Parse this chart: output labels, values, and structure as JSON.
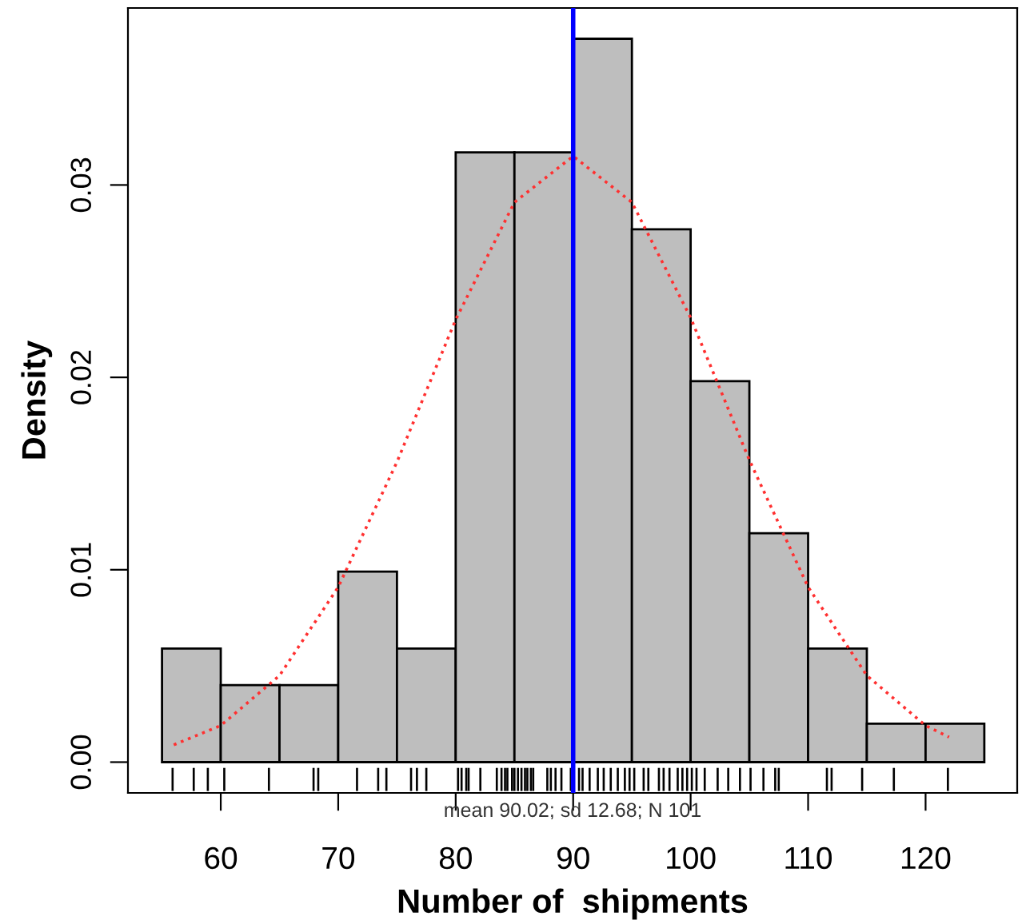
{
  "chart_data": {
    "type": "histogram",
    "xlabel": "Number of  shipments",
    "ylabel": "Density",
    "bins": [
      55,
      60,
      65,
      70,
      75,
      80,
      85,
      90,
      95,
      100,
      105,
      110,
      115,
      120,
      125
    ],
    "values": [
      0.0059,
      0.004,
      0.004,
      0.0099,
      0.0059,
      0.0317,
      0.0317,
      0.0376,
      0.0277,
      0.0198,
      0.0119,
      0.0059,
      0.002,
      0.002
    ],
    "color": "#bebebe",
    "series": [
      {
        "type": "line",
        "color": "#ff3030",
        "line_style": "dotted",
        "x": [
          56,
          60,
          65,
          70,
          75,
          80,
          85,
          90,
          95,
          100,
          105,
          110,
          115,
          120,
          122
        ],
        "values": [
          0.0009,
          0.0019,
          0.0045,
          0.0091,
          0.0156,
          0.023,
          0.0291,
          0.0315,
          0.0291,
          0.0231,
          0.0157,
          0.0091,
          0.0045,
          0.0019,
          0.0013
        ]
      },
      {
        "type": "bar",
        "color": "#000000",
        "x": [
          55.9,
          57.7,
          58.9,
          60.3,
          64.1,
          67.9,
          68.3,
          71.6,
          73.4,
          74.1,
          76.2,
          76.7,
          77.5,
          80.2,
          80.5,
          80.9,
          81.1,
          82.1,
          83.5,
          83.9,
          84.2,
          84.4,
          84.8,
          85.0,
          85.3,
          85.6,
          85.9,
          86.1,
          86.4,
          86.6,
          87.8,
          88.1,
          88.5,
          89.0,
          89.8,
          90.5,
          90.8,
          91.4,
          92.1,
          92.6,
          93.2,
          93.8,
          94.4,
          94.8,
          95.2,
          96.0,
          96.4,
          97.3,
          97.7,
          98.2,
          98.9,
          99.3,
          99.7,
          100.1,
          100.5,
          101.2,
          102.3,
          103.2,
          104.2,
          105.1,
          106.2,
          107.2,
          107.5,
          111.6,
          112.0,
          114.6,
          117.3,
          121.9
        ],
        "base": [
          -0.0015,
          -0.0015,
          -0.0015,
          -0.0015,
          -0.0015,
          -0.0015,
          -0.0015,
          -0.0015,
          -0.0015,
          -0.0015,
          -0.0015,
          -0.0015,
          -0.0015,
          -0.0015,
          -0.0015,
          -0.0015,
          -0.0015,
          -0.0015,
          -0.0015,
          -0.0015,
          -0.0015,
          -0.0015,
          -0.0015,
          -0.0015,
          -0.0015,
          -0.0015,
          -0.0015,
          -0.0015,
          -0.0015,
          -0.0015,
          -0.0015,
          -0.0015,
          -0.0015,
          -0.0015,
          -0.0015,
          -0.0015,
          -0.0015,
          -0.0015,
          -0.0015,
          -0.0015,
          -0.0015,
          -0.0015,
          -0.0015,
          -0.0015,
          -0.0015,
          -0.0015,
          -0.0015,
          -0.0015,
          -0.0015,
          -0.0015,
          -0.0015,
          -0.0015,
          -0.0015,
          -0.0015,
          -0.0015,
          -0.0015,
          -0.0015,
          -0.0015,
          -0.0015,
          -0.0015,
          -0.0015,
          -0.0015,
          -0.0015,
          -0.0015,
          -0.0015,
          -0.0015,
          -0.0015,
          -0.0015
        ],
        "values": [
          0.0012,
          0.0012,
          0.0012,
          0.0012,
          0.0012,
          0.0012,
          0.0012,
          0.0012,
          0.0012,
          0.0012,
          0.0012,
          0.0012,
          0.0012,
          0.0012,
          0.0012,
          0.0012,
          0.0012,
          0.0012,
          0.0012,
          0.0012,
          0.0012,
          0.0012,
          0.0012,
          0.0012,
          0.0012,
          0.0012,
          0.0012,
          0.0012,
          0.0012,
          0.0012,
          0.0012,
          0.0012,
          0.0012,
          0.0012,
          0.0012,
          0.0012,
          0.0012,
          0.0012,
          0.0012,
          0.0012,
          0.0012,
          0.0012,
          0.0012,
          0.0012,
          0.0012,
          0.0012,
          0.0012,
          0.0012,
          0.0012,
          0.0012,
          0.0012,
          0.0012,
          0.0012,
          0.0012,
          0.0012,
          0.0012,
          0.0012,
          0.0012,
          0.0012,
          0.0012,
          0.0012,
          0.0012,
          0.0012,
          0.0012,
          0.0012,
          0.0012,
          0.0012,
          0.0012
        ]
      }
    ],
    "ref_lines": [
      {
        "axis": "x",
        "value": 90,
        "color": "#0000ff"
      }
    ],
    "annotations": [
      "mean 90.02; sd 12.68; N 101"
    ],
    "xlim": [
      52.1,
      127.8
    ],
    "ylim": [
      -0.0016,
      0.0392
    ],
    "xticks": [
      60,
      70,
      80,
      90,
      100,
      110,
      120
    ],
    "yticks": [
      {
        "value": 0,
        "label": "0.00"
      },
      {
        "value": 0.01,
        "label": "0.01"
      },
      {
        "value": 0.02,
        "label": "0.02"
      },
      {
        "value": 0.03,
        "label": "0.03"
      }
    ],
    "grid": false,
    "legend": false
  }
}
